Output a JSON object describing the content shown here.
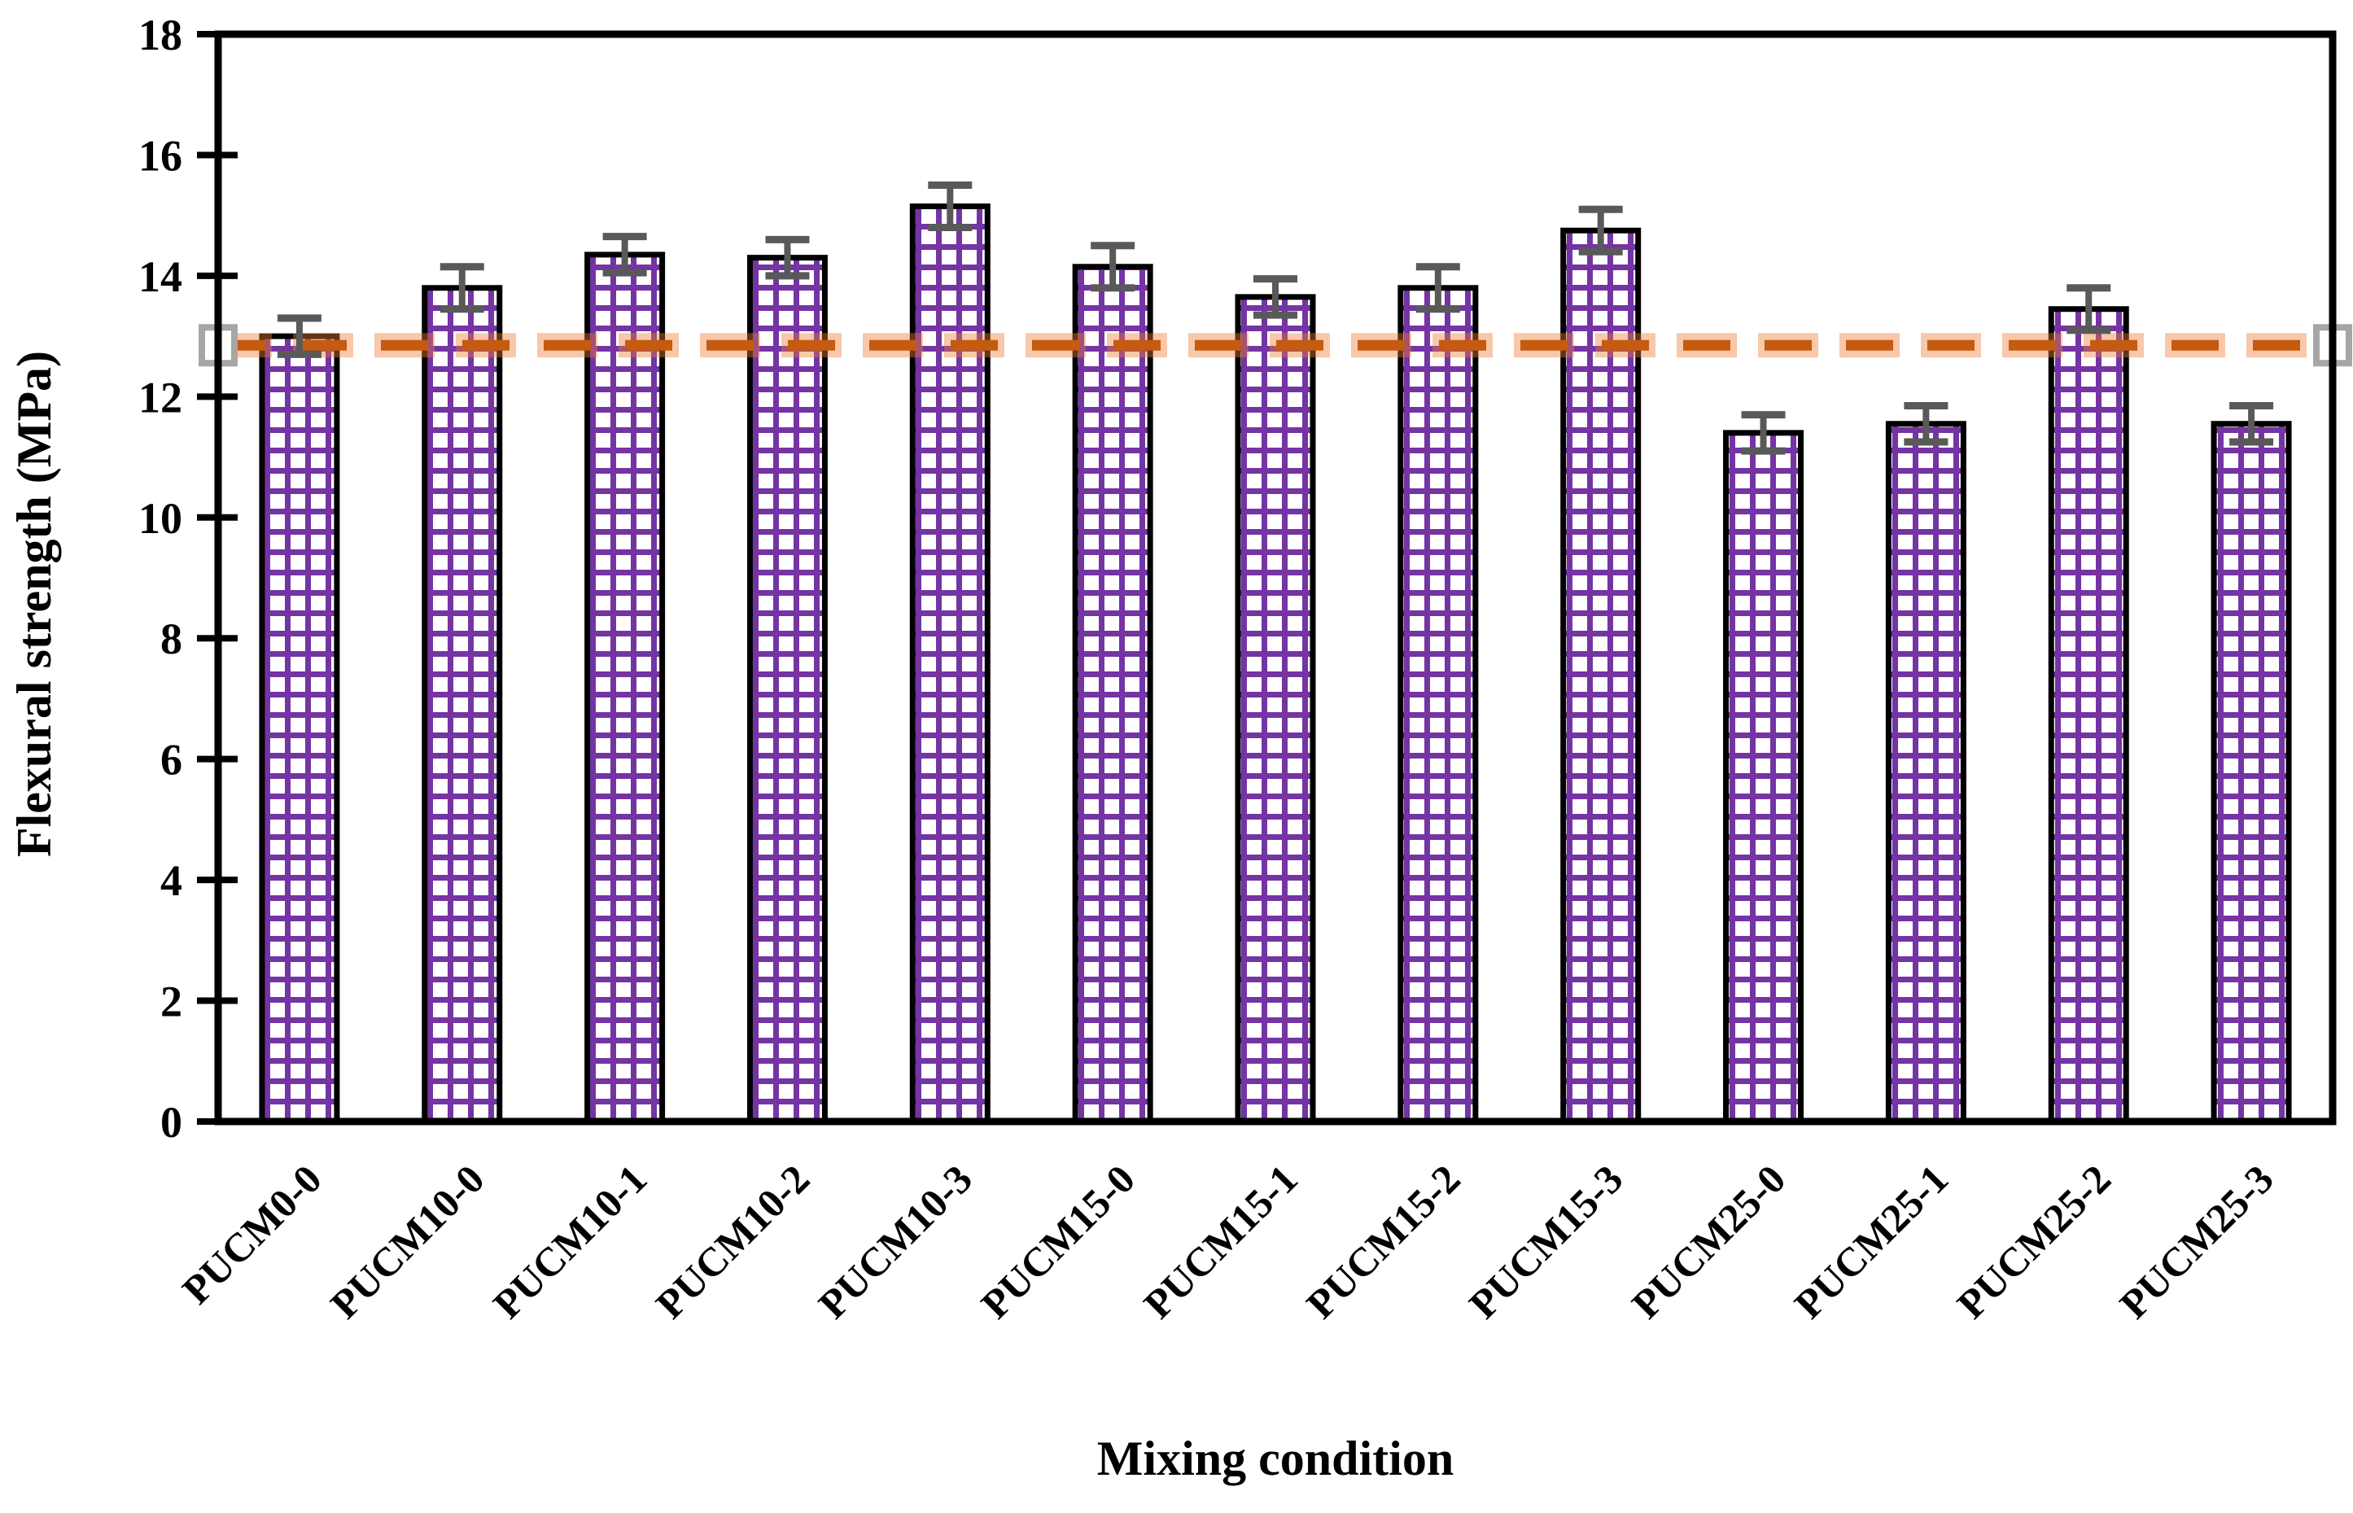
{
  "chart_data": {
    "type": "bar",
    "title": "",
    "xlabel": "Mixing condition",
    "ylabel": "Flexural strength (MPa)",
    "categories": [
      "PUCM0-0",
      "PUCM10-0",
      "PUCM10-1",
      "PUCM10-2",
      "PUCM10-3",
      "PUCM15-0",
      "PUCM15-1",
      "PUCM15-2",
      "PUCM15-3",
      "PUCM25-0",
      "PUCM25-1",
      "PUCM25-2",
      "PUCM25-3"
    ],
    "values": [
      13.0,
      13.8,
      14.35,
      14.3,
      15.15,
      14.15,
      13.65,
      13.8,
      14.75,
      11.4,
      11.55,
      13.45,
      11.55
    ],
    "error_bars": [
      0.3,
      0.35,
      0.3,
      0.3,
      0.35,
      0.35,
      0.3,
      0.35,
      0.35,
      0.3,
      0.3,
      0.35,
      0.3
    ],
    "reference_line": {
      "value": 12.85,
      "style": "dashed",
      "marker": "open-square-at-ends"
    },
    "ylim": [
      0,
      18
    ],
    "ytick_step": 2,
    "grid": false,
    "legend": "none",
    "bar_style": {
      "fill_background": "#ffffff",
      "hatch": "grid",
      "hatch_color": "#7434A4",
      "border_color": "#000000"
    },
    "colors": {
      "reference_line_core": "#C55A11",
      "reference_line_halo": "#ED7D31",
      "error_bar": "#595959",
      "marker_border": "#A6A6A6",
      "marker_fill": "#ffffff",
      "axis": "#000000"
    }
  }
}
